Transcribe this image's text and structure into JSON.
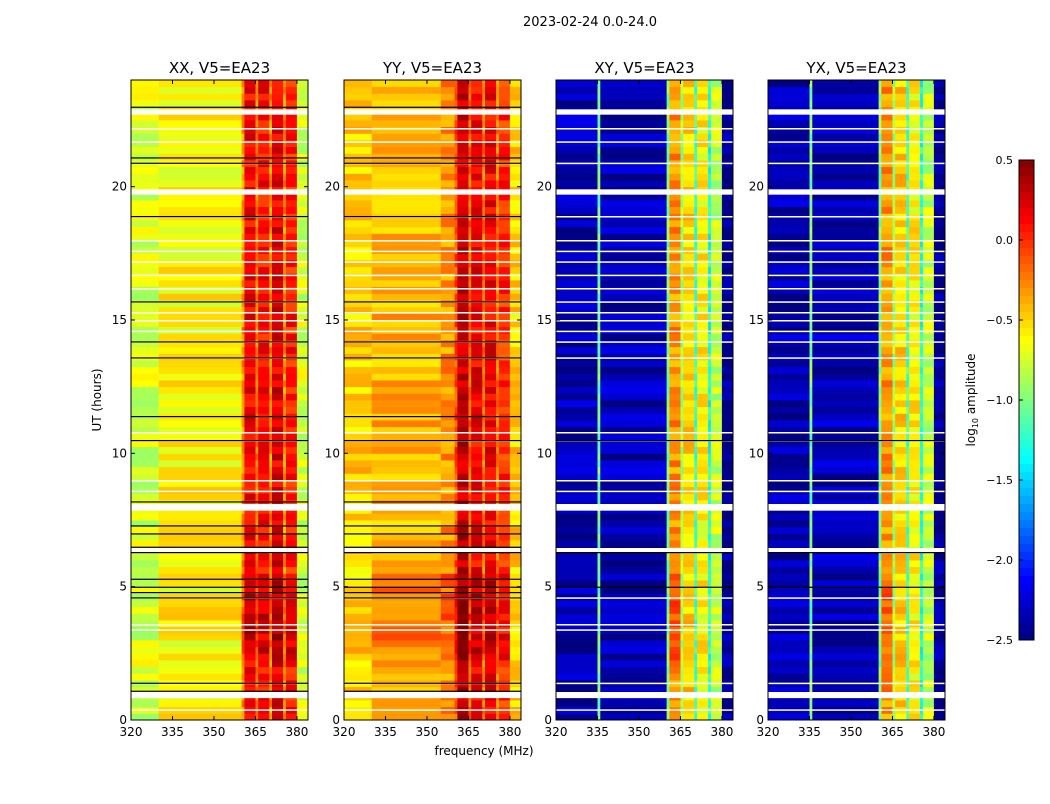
{
  "chart_data": {
    "type": "heatmap",
    "suptitle": "2023-02-24 0.0-24.0",
    "xlabel": "frequency (MHz)",
    "ylabel": "UT (hours)",
    "xlim": [
      320,
      384
    ],
    "ylim": [
      0,
      24
    ],
    "xticks": [
      "320",
      "335",
      "350",
      "365",
      "380"
    ],
    "xtick_values": [
      320,
      335,
      350,
      365,
      380
    ],
    "yticks": [
      "0",
      "5",
      "10",
      "15",
      "20"
    ],
    "ytick_values": [
      0,
      5,
      10,
      15,
      20
    ],
    "colorbar": {
      "label_main": "log",
      "label_sub": "10",
      "label_rest": " amplitude",
      "range": [
        -2.5,
        0.5
      ],
      "ticks": [
        "0.5",
        "0.0",
        "−0.5",
        "−1.0",
        "−1.5",
        "−2.0",
        "−2.5"
      ],
      "tick_values": [
        0.5,
        0.0,
        -0.5,
        -1.0,
        -1.5,
        -2.0,
        -2.5
      ],
      "colormap": "jet"
    },
    "flagged_hours": [
      [
        0.82,
        1.05
      ],
      [
        6.3,
        6.45
      ],
      [
        7.85,
        8.1
      ],
      [
        19.7,
        19.9
      ],
      [
        22.7,
        22.9
      ]
    ],
    "thin_flag_hours": [
      0.4,
      1.4,
      3.4,
      3.6,
      4.6,
      8.6,
      9.0,
      10.5,
      10.8,
      13.6,
      14.2,
      14.6,
      15.0,
      15.3,
      15.7,
      16.2,
      16.7,
      17.2,
      17.6,
      18.0,
      18.9,
      20.9,
      21.7,
      22.2
    ],
    "panels": [
      {
        "title": "XX, V5=EA23",
        "bands": [
          [
            320,
            330,
            -0.75
          ],
          [
            330,
            360,
            -0.6
          ],
          [
            360,
            361,
            -0.3
          ],
          [
            361,
            365,
            0.15
          ],
          [
            365,
            366,
            -0.25
          ],
          [
            366,
            370,
            0.1
          ],
          [
            370,
            371,
            -0.3
          ],
          [
            371,
            375,
            0.2
          ],
          [
            375,
            376,
            -0.3
          ],
          [
            376,
            380,
            0.05
          ],
          [
            380,
            384,
            -0.75
          ]
        ],
        "black_lines": [
          1.1,
          1.4,
          4.6,
          4.8,
          5.0,
          5.3,
          6.3,
          6.5,
          7.0,
          7.3,
          8.2,
          10.5,
          11.4,
          13.6,
          14.2,
          15.7,
          18.9,
          20.9,
          21.1,
          23.0
        ]
      },
      {
        "title": "YY, V5=EA23",
        "bands": [
          [
            320,
            330,
            -0.5
          ],
          [
            330,
            355,
            -0.4
          ],
          [
            355,
            360,
            -0.3
          ],
          [
            360,
            361,
            -0.1
          ],
          [
            361,
            365,
            0.3
          ],
          [
            365,
            366,
            -0.2
          ],
          [
            366,
            370,
            0.15
          ],
          [
            370,
            371,
            -0.25
          ],
          [
            371,
            375,
            0.15
          ],
          [
            375,
            376,
            -0.25
          ],
          [
            376,
            380,
            0.0
          ],
          [
            380,
            384,
            -0.5
          ]
        ],
        "black_lines": [
          1.1,
          1.4,
          4.6,
          4.8,
          5.0,
          5.3,
          6.3,
          6.5,
          7.0,
          7.3,
          8.2,
          10.5,
          11.4,
          13.6,
          14.2,
          15.7,
          18.9,
          20.9,
          21.1,
          23.0
        ]
      },
      {
        "title": "XY, V5=EA23",
        "bands": [
          [
            320,
            335,
            -2.35
          ],
          [
            335,
            336,
            -1.0
          ],
          [
            336,
            360,
            -2.35
          ],
          [
            360,
            361,
            -1.0
          ],
          [
            361,
            365,
            -0.3
          ],
          [
            365,
            366,
            -0.9
          ],
          [
            366,
            370,
            -0.5
          ],
          [
            370,
            371,
            -1.2
          ],
          [
            371,
            375,
            -0.6
          ],
          [
            375,
            376,
            -1.3
          ],
          [
            376,
            380,
            -0.8
          ],
          [
            380,
            384,
            -2.45
          ]
        ],
        "black_lines": [
          5.0,
          6.3,
          10.5
        ]
      },
      {
        "title": "YX, V5=EA23",
        "bands": [
          [
            320,
            335,
            -2.35
          ],
          [
            335,
            336,
            -1.0
          ],
          [
            336,
            360,
            -2.35
          ],
          [
            360,
            361,
            -1.0
          ],
          [
            361,
            365,
            -0.3
          ],
          [
            365,
            366,
            -0.9
          ],
          [
            366,
            370,
            -0.5
          ],
          [
            370,
            371,
            -1.2
          ],
          [
            371,
            375,
            -0.6
          ],
          [
            375,
            376,
            -1.3
          ],
          [
            376,
            380,
            -0.8
          ],
          [
            380,
            384,
            -2.45
          ]
        ],
        "black_lines": [
          5.0,
          6.3,
          10.5
        ]
      }
    ]
  }
}
